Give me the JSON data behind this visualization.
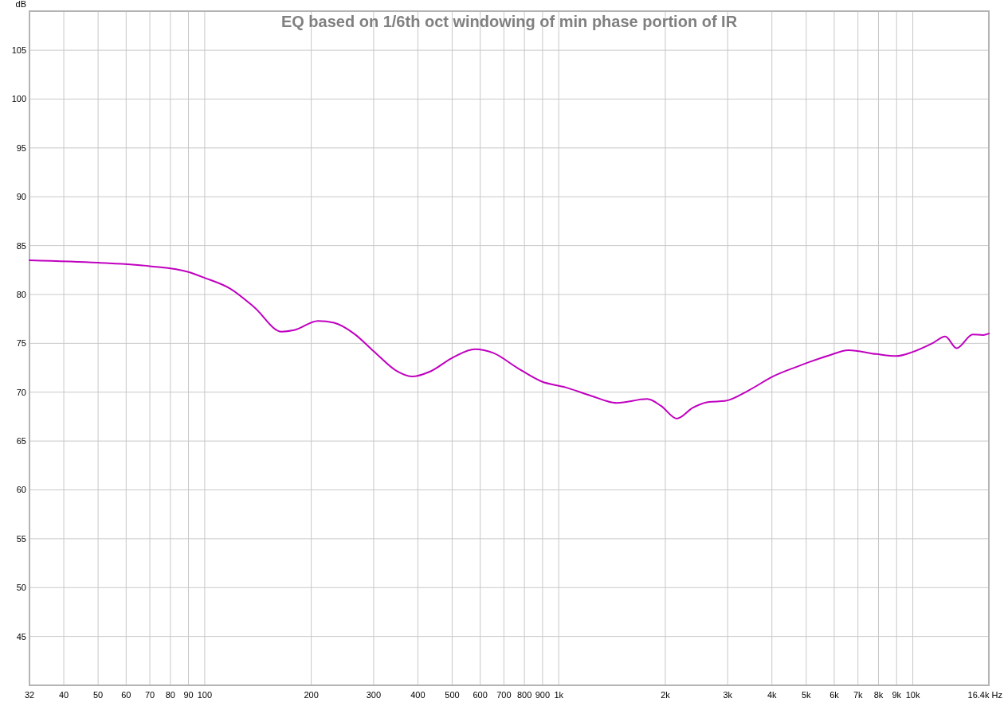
{
  "chart_data": {
    "type": "line",
    "title": "EQ based on 1/6th oct windowing of min phase portion of IR",
    "ylabel": "dB",
    "log": "x",
    "grid": true,
    "marker": "none",
    "line_style": "solid",
    "xlim": [
      32,
      16400
    ],
    "ylim": [
      40,
      109
    ],
    "xticks": [
      32,
      40,
      50,
      60,
      70,
      80,
      90,
      100,
      200,
      300,
      400,
      500,
      600,
      700,
      800,
      900,
      {
        "value": 1000,
        "label": "1k"
      },
      {
        "value": 2000,
        "label": "2k"
      },
      {
        "value": 3000,
        "label": "3k"
      },
      {
        "value": 4000,
        "label": "4k"
      },
      {
        "value": 5000,
        "label": "5k"
      },
      {
        "value": 6000,
        "label": "6k"
      },
      {
        "value": 7000,
        "label": "7k"
      },
      {
        "value": 8000,
        "label": "8k"
      },
      {
        "value": 9000,
        "label": "9k"
      },
      {
        "value": 10000,
        "label": "10k"
      },
      {
        "value": 16400,
        "label": "16.4k Hz"
      }
    ],
    "yticks": [
      45,
      50,
      55,
      60,
      65,
      70,
      75,
      80,
      85,
      90,
      95,
      100,
      105
    ],
    "series": [
      {
        "color": "#c000c0",
        "x": [
          32,
          50,
          70,
          90,
          100,
          118,
          138,
          165,
          179,
          209,
          232,
          264,
          300,
          351,
          385,
          432,
          505,
          580,
          655,
          763,
          894,
          1045,
          1220,
          1462,
          1779,
          1944,
          2157,
          2390,
          2655,
          2945,
          3446,
          4021,
          4700,
          5783,
          6584,
          7890,
          8980,
          9960,
          11350,
          12350,
          13300,
          14770,
          15780,
          16400
        ],
        "values": [
          83.5,
          83.25,
          82.9,
          82.3,
          81.7,
          80.6,
          78.7,
          76.2,
          76.35,
          77.3,
          77.1,
          76.0,
          74.2,
          72.1,
          71.6,
          72.1,
          73.6,
          74.4,
          74.0,
          72.5,
          71.1,
          70.5,
          69.7,
          68.9,
          69.3,
          68.6,
          67.3,
          68.4,
          69.0,
          69.1,
          70.2,
          71.6,
          72.6,
          73.75,
          74.3,
          73.9,
          73.7,
          74.1,
          75.0,
          75.7,
          74.5,
          75.9,
          75.85,
          76.0
        ]
      }
    ]
  }
}
